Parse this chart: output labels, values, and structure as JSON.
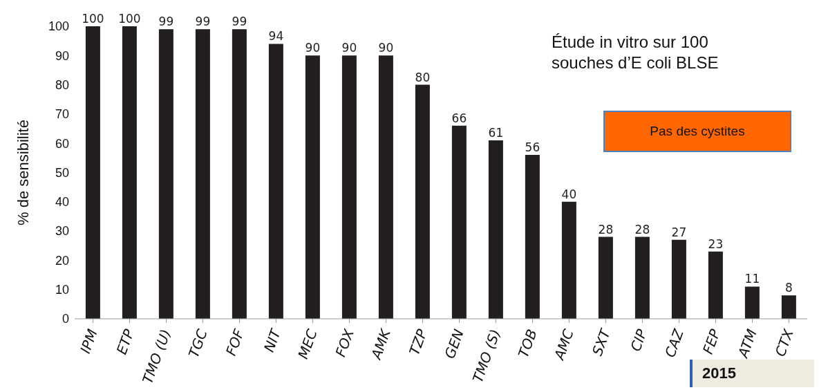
{
  "chart_data": {
    "type": "bar",
    "ylabel": "% de sensibilité",
    "categories": [
      "IPM",
      "ETP",
      "TMO (U)",
      "TGC",
      "FOF",
      "NIT",
      "MEC",
      "FOX",
      "AMK",
      "TZP",
      "GEN",
      "TMO (S)",
      "TOB",
      "AMC",
      "SXT",
      "CIP",
      "CAZ",
      "FEP",
      "ATM",
      "CTX"
    ],
    "values": [
      100,
      100,
      99,
      99,
      99,
      94,
      90,
      90,
      90,
      80,
      66,
      61,
      56,
      40,
      28,
      28,
      27,
      23,
      11,
      8
    ],
    "color": "#231f20",
    "ylim": [
      0,
      100
    ],
    "yticks": [
      0,
      10,
      20,
      30,
      40,
      50,
      60,
      70,
      80,
      90,
      100
    ],
    "grid": false,
    "data_labels": true,
    "legend": false,
    "annotations": [
      "Étude in vitro sur 100 souches d’E coli BLSE",
      "Pas des cystites",
      "2015"
    ]
  }
}
